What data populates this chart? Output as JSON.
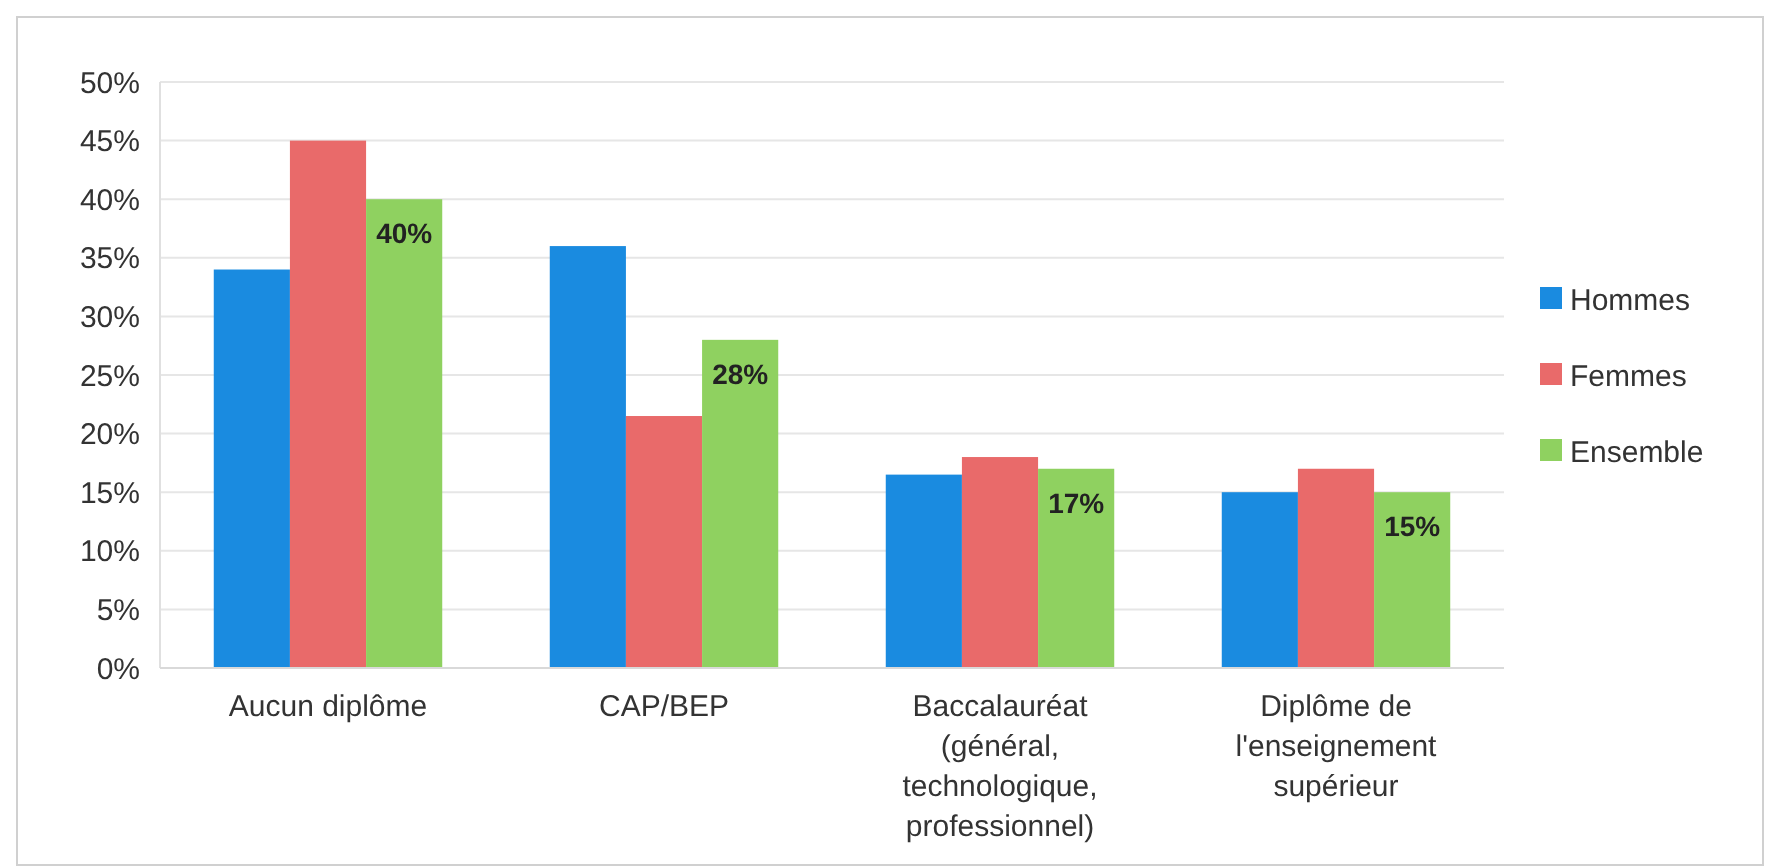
{
  "chart_data": {
    "type": "bar",
    "categories": [
      "Aucun diplôme",
      "CAP/BEP",
      "Baccalauréat (général, technologique, professionnel)",
      "Diplôme de l'enseignement supérieur"
    ],
    "series": [
      {
        "name": "Hommes",
        "color": "#1a8be0",
        "values": [
          34,
          36,
          16.5,
          15
        ]
      },
      {
        "name": "Femmes",
        "color": "#e96a6a",
        "values": [
          45,
          21.5,
          18,
          17
        ]
      },
      {
        "name": "Ensemble",
        "color": "#8fd160",
        "values": [
          40,
          28,
          17,
          15
        ],
        "value_labels": [
          "40%",
          "28%",
          "17%",
          "15%"
        ]
      }
    ],
    "ylim": [
      0,
      50
    ],
    "yticks": [
      {
        "value": 0,
        "label": "0%"
      },
      {
        "value": 5,
        "label": "5%"
      },
      {
        "value": 10,
        "label": "10%"
      },
      {
        "value": 15,
        "label": "15%"
      },
      {
        "value": 20,
        "label": "20%"
      },
      {
        "value": 25,
        "label": "25%"
      },
      {
        "value": 30,
        "label": "30%"
      },
      {
        "value": 35,
        "label": "35%"
      },
      {
        "value": 40,
        "label": "40%"
      },
      {
        "value": 45,
        "label": "45%"
      },
      {
        "value": 50,
        "label": "50%"
      }
    ],
    "grid": "y",
    "legend": "right"
  }
}
